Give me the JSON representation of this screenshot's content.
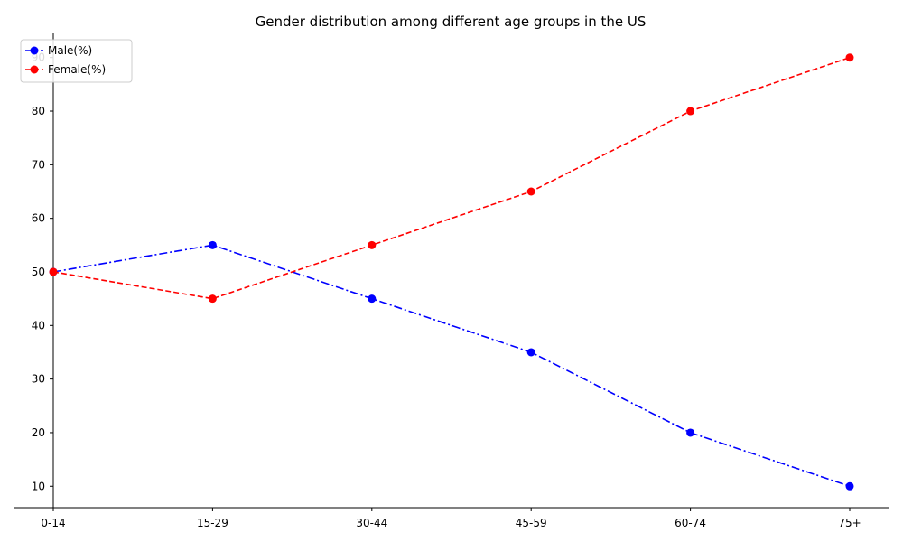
{
  "chart_data": {
    "type": "line",
    "title": "Gender distribution among different age groups in the US",
    "xlabel": "",
    "ylabel": "",
    "categories": [
      "0-14",
      "15-29",
      "30-44",
      "45-59",
      "60-74",
      "75+"
    ],
    "yticks": [
      10,
      20,
      30,
      40,
      50,
      60,
      70,
      80,
      90
    ],
    "ylim": [
      6,
      94.5
    ],
    "grid": false,
    "legend": "top-left",
    "series": [
      {
        "name": "Male(%)",
        "values": [
          50,
          55,
          45,
          35,
          20,
          10
        ],
        "color": "#0000ff",
        "dash": "dashdot"
      },
      {
        "name": "Female(%)",
        "values": [
          50,
          45,
          55,
          65,
          80,
          90
        ],
        "color": "#ff0000",
        "dash": "dashed"
      }
    ]
  }
}
